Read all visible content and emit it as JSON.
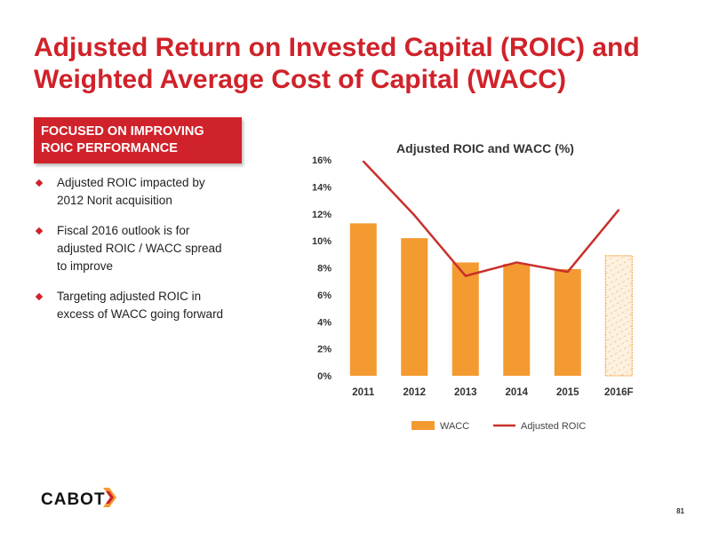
{
  "slide": {
    "title_lines": [
      "Adjusted Return on Invested Capital (ROIC) and",
      "Weighted Average Cost of Capital (WACC)"
    ],
    "banner_lines": [
      "FOCUSED ON IMPROVING",
      "ROIC PERFORMANCE"
    ],
    "bullets": [
      [
        "Adjusted ROIC impacted by",
        "2012 Norit acquisition"
      ],
      [
        "Fiscal 2016 outlook is for",
        "adjusted ROIC / WACC spread",
        "to improve"
      ],
      [
        "Targeting adjusted ROIC in",
        "excess of WACC going forward"
      ]
    ],
    "logo_text": "CABOT",
    "page_number": "81",
    "colors": {
      "accent_red": "#d0222a",
      "bar_orange": "#f39a31",
      "line_red": "#c9302c"
    }
  },
  "chart_data": {
    "type": "bar",
    "title": "Adjusted ROIC and WACC (%)",
    "categories": [
      "2011",
      "2012",
      "2013",
      "2014",
      "2015",
      "2016F"
    ],
    "y_ticks": [
      "0%",
      "2%",
      "4%",
      "6%",
      "8%",
      "10%",
      "12%",
      "14%",
      "16%"
    ],
    "ylim": [
      0,
      16
    ],
    "grid": false,
    "legend_position": "bottom",
    "series": [
      {
        "name": "WACC",
        "kind": "bar",
        "values": [
          11.3,
          10.2,
          8.4,
          8.3,
          7.9,
          8.9
        ],
        "forecast_index": 5
      },
      {
        "name": "Adjusted ROIC",
        "kind": "line",
        "values": [
          15.9,
          11.9,
          7.4,
          8.4,
          7.7,
          12.3
        ]
      }
    ]
  }
}
